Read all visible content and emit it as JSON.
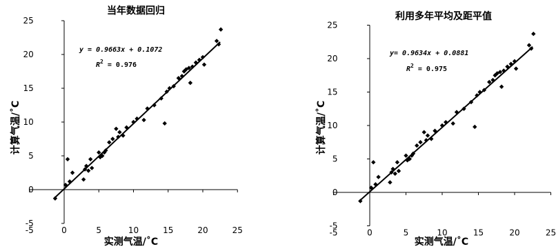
{
  "chart_data": [
    {
      "type": "scatter",
      "title": "当年数据回归",
      "xlabel": "实测气温/˚C",
      "ylabel": "计算气温/˚C",
      "xlim": [
        -5,
        25
      ],
      "ylim": [
        -5,
        25
      ],
      "xticks": [
        "-5",
        "0",
        "5",
        "10",
        "15",
        "20",
        "25"
      ],
      "yticks": [
        "-5",
        "0",
        "5",
        "10",
        "15",
        "20",
        "25"
      ],
      "grid": false,
      "equation": "y = 0.9663x + 0.1072",
      "r2_symbol": "R",
      "r2_sup": "2",
      "r2_value": " = 0.976",
      "fit": {
        "slope": 0.9663,
        "intercept": 0.1072,
        "x_range": [
          -1.3,
          22.5
        ]
      },
      "series": [
        {
          "x": [
            -1.3,
            0.2,
            0.5,
            0.8,
            1.2,
            2.8,
            3.0,
            3.2,
            3.5,
            3.8,
            4.0,
            5.0,
            5.2,
            5.5,
            5.8,
            6.0,
            6.5,
            7.0,
            7.5,
            7.8,
            8.0,
            8.5,
            9.0,
            10.0,
            10.5,
            11.5,
            12.0,
            13.0,
            14.0,
            14.5,
            14.8,
            15.2,
            15.8,
            16.5,
            17.0,
            17.3,
            17.6,
            18.0,
            18.2,
            18.5,
            19.0,
            19.5,
            20.0,
            20.2,
            22.0,
            22.3,
            22.6
          ],
          "y": [
            -1.3,
            0.7,
            4.5,
            1.2,
            2.5,
            1.5,
            3.0,
            3.5,
            2.8,
            4.5,
            3.2,
            5.5,
            4.8,
            5.0,
            5.5,
            5.8,
            7.0,
            7.5,
            9.0,
            7.8,
            8.5,
            8.0,
            9.2,
            10.0,
            10.5,
            10.3,
            12.0,
            12.5,
            13.5,
            9.8,
            14.5,
            15.0,
            15.3,
            16.5,
            16.8,
            17.5,
            17.8,
            18.0,
            15.8,
            18.2,
            18.8,
            19.2,
            19.6,
            18.5,
            22.0,
            21.5,
            23.7
          ]
        }
      ]
    },
    {
      "type": "scatter",
      "title": "利用多年平均及距平值",
      "xlabel": "实测气温/˚C",
      "ylabel": "计算气温/˚C",
      "xlim": [
        -5,
        25
      ],
      "ylim": [
        -5,
        25
      ],
      "xticks": [
        "-5",
        "0",
        "5",
        "10",
        "15",
        "20",
        "25"
      ],
      "yticks": [
        "-5",
        "0",
        "5",
        "10",
        "15",
        "20",
        "25"
      ],
      "grid": false,
      "equation": "y= 0.9634x + 0.0881",
      "r2_symbol": "R",
      "r2_sup": "2",
      "r2_value": " = 0.975",
      "fit": {
        "slope": 0.9634,
        "intercept": 0.0881,
        "x_range": [
          -1.3,
          22.5
        ]
      },
      "series": [
        {
          "x": [
            -1.3,
            0.2,
            0.5,
            0.8,
            1.2,
            2.8,
            3.0,
            3.2,
            3.5,
            3.8,
            4.0,
            5.0,
            5.2,
            5.5,
            5.8,
            6.0,
            6.5,
            7.0,
            7.5,
            7.8,
            8.0,
            8.5,
            9.0,
            10.0,
            10.5,
            11.5,
            12.0,
            13.0,
            14.0,
            14.5,
            14.8,
            15.2,
            15.8,
            16.5,
            17.0,
            17.3,
            17.6,
            18.0,
            18.2,
            18.5,
            19.0,
            19.5,
            20.0,
            20.2,
            22.0,
            22.3,
            22.6
          ],
          "y": [
            -1.3,
            0.7,
            4.5,
            1.2,
            2.3,
            1.5,
            3.0,
            3.5,
            2.8,
            4.5,
            3.2,
            5.5,
            4.8,
            5.0,
            5.5,
            5.8,
            7.0,
            7.5,
            9.0,
            7.8,
            8.5,
            8.0,
            9.2,
            10.0,
            10.5,
            10.3,
            12.0,
            12.5,
            13.5,
            9.8,
            14.5,
            15.0,
            15.3,
            16.5,
            16.8,
            17.5,
            17.8,
            18.0,
            15.8,
            18.2,
            18.8,
            19.2,
            19.6,
            18.5,
            22.0,
            21.5,
            23.7
          ]
        }
      ]
    }
  ]
}
